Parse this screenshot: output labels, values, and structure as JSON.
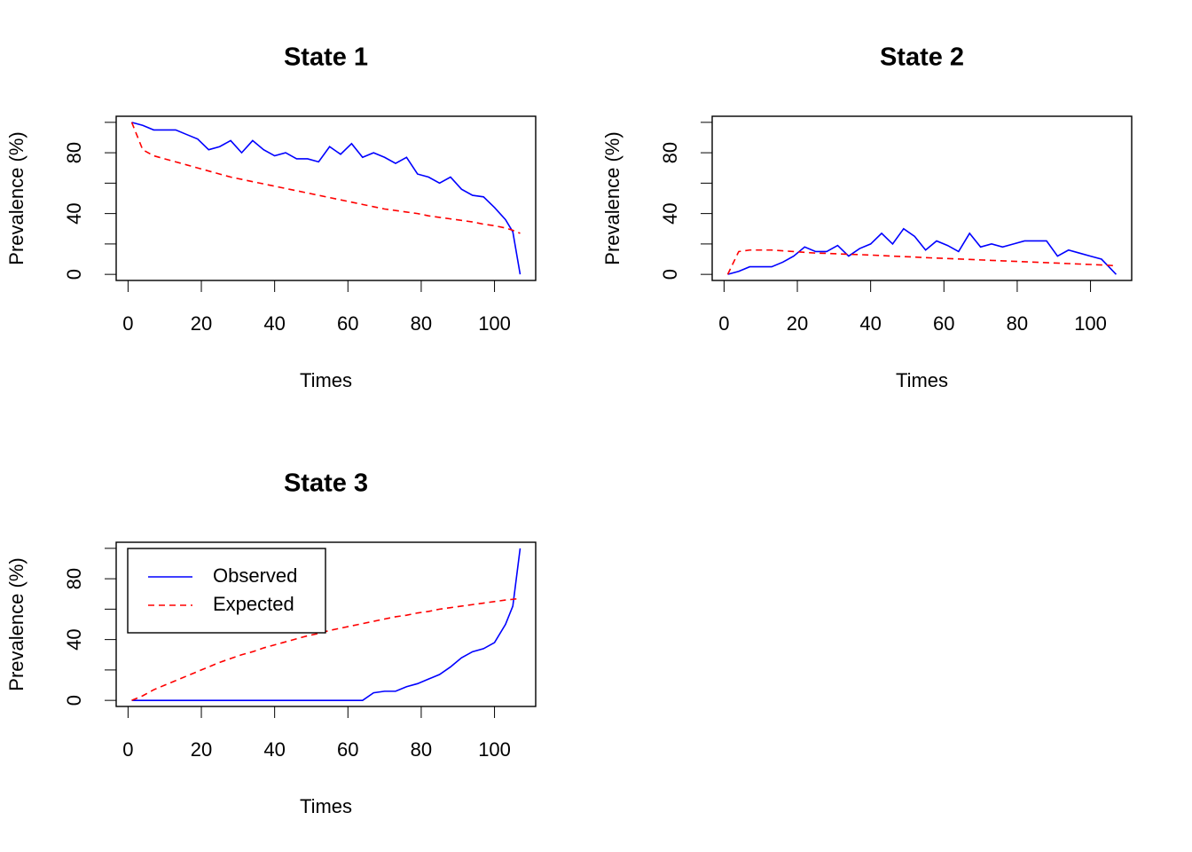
{
  "chart_data": [
    {
      "type": "line",
      "title": "State 1",
      "xlabel": "Times",
      "ylabel": "Prevalence (%)",
      "x": [
        1,
        4,
        7,
        10,
        13,
        16,
        19,
        22,
        25,
        28,
        31,
        34,
        37,
        40,
        43,
        46,
        49,
        52,
        55,
        58,
        61,
        64,
        67,
        70,
        73,
        76,
        79,
        82,
        85,
        88,
        91,
        94,
        97,
        100,
        103,
        105,
        107
      ],
      "series": [
        {
          "name": "Observed",
          "color": "#0000ff",
          "linestyle": "solid",
          "values": [
            100,
            98,
            95,
            95,
            95,
            92,
            89,
            82,
            84,
            88,
            80,
            88,
            82,
            78,
            80,
            76,
            76,
            74,
            84,
            79,
            86,
            77,
            80,
            77,
            73,
            77,
            66,
            64,
            60,
            64,
            56,
            52,
            51,
            44,
            36,
            28,
            0
          ]
        },
        {
          "name": "Expected",
          "color": "#ff0000",
          "linestyle": "dashed",
          "values": [
            100,
            82,
            78,
            76,
            74,
            72,
            70,
            68,
            66,
            64,
            62.5,
            61,
            59.5,
            58,
            56.5,
            55,
            53.5,
            52,
            50.5,
            49,
            47.5,
            46,
            44.5,
            43,
            42,
            41,
            40,
            38.5,
            37.5,
            36.5,
            35.5,
            34.5,
            33,
            32,
            30.5,
            29,
            27
          ]
        }
      ],
      "xlim": [
        -3.24,
        111.24
      ],
      "ylim": [
        -4,
        104
      ],
      "xticks": [
        0,
        20,
        40,
        60,
        80,
        100
      ],
      "yticks": [
        0,
        40,
        80
      ],
      "yminor_ticks": [
        20,
        60,
        100
      ]
    },
    {
      "type": "line",
      "title": "State 2",
      "xlabel": "Times",
      "ylabel": "Prevalence (%)",
      "x": [
        1,
        4,
        7,
        10,
        13,
        16,
        19,
        22,
        25,
        28,
        31,
        34,
        37,
        40,
        43,
        46,
        49,
        52,
        55,
        58,
        61,
        64,
        67,
        70,
        73,
        76,
        79,
        82,
        85,
        88,
        91,
        94,
        97,
        100,
        103,
        105,
        107
      ],
      "series": [
        {
          "name": "Observed",
          "color": "#0000ff",
          "linestyle": "solid",
          "values": [
            0,
            2,
            5,
            5,
            5,
            8,
            12,
            18,
            15,
            15,
            19,
            12,
            17,
            20,
            27,
            20,
            30,
            25,
            16,
            22,
            19,
            15,
            27,
            18,
            20,
            18,
            20,
            22,
            22,
            22,
            12,
            16,
            14,
            12,
            10,
            5,
            0
          ]
        },
        {
          "name": "Expected",
          "color": "#ff0000",
          "linestyle": "dashed",
          "values": [
            0,
            15,
            16,
            16,
            16,
            15.5,
            15,
            14.5,
            14,
            13.8,
            13.5,
            13.2,
            13,
            12.7,
            12.4,
            12,
            11.7,
            11.4,
            11,
            10.7,
            10.4,
            10.1,
            9.8,
            9.5,
            9.2,
            8.9,
            8.6,
            8.3,
            8,
            7.7,
            7.4,
            7.1,
            6.8,
            6.5,
            6.2,
            6,
            5.5
          ]
        }
      ],
      "xlim": [
        -3.24,
        111.24
      ],
      "ylim": [
        -4,
        104
      ],
      "xticks": [
        0,
        20,
        40,
        60,
        80,
        100
      ],
      "yticks": [
        0,
        40,
        80
      ],
      "yminor_ticks": [
        20,
        60,
        100
      ]
    },
    {
      "type": "line",
      "title": "State 3",
      "xlabel": "Times",
      "ylabel": "Prevalence (%)",
      "x": [
        1,
        4,
        7,
        10,
        13,
        16,
        19,
        22,
        25,
        28,
        31,
        34,
        37,
        40,
        43,
        46,
        49,
        52,
        55,
        58,
        61,
        64,
        67,
        70,
        73,
        76,
        79,
        82,
        85,
        88,
        91,
        94,
        97,
        100,
        103,
        105,
        107
      ],
      "series": [
        {
          "name": "Observed",
          "color": "#0000ff",
          "linestyle": "solid",
          "values": [
            0,
            0,
            0,
            0,
            0,
            0,
            0,
            0,
            0,
            0,
            0,
            0,
            0,
            0,
            0,
            0,
            0,
            0,
            0,
            0,
            0,
            0,
            5,
            6,
            6,
            9,
            11,
            14,
            17,
            22,
            28,
            32,
            34,
            38,
            50,
            62,
            100
          ]
        },
        {
          "name": "Expected",
          "color": "#ff0000",
          "linestyle": "dashed",
          "values": [
            0,
            3,
            7,
            10,
            13,
            16,
            19,
            22,
            25,
            27.5,
            30,
            32,
            34.5,
            36.5,
            38.5,
            40.5,
            42.5,
            44,
            46,
            47.5,
            49,
            50.5,
            52,
            53.5,
            55,
            56,
            57.5,
            58.5,
            60,
            61,
            62,
            63,
            64,
            65,
            66,
            66.5,
            67
          ]
        }
      ],
      "xlim": [
        -3.24,
        111.24
      ],
      "ylim": [
        -4,
        104
      ],
      "xticks": [
        0,
        20,
        40,
        60,
        80,
        100
      ],
      "yticks": [
        0,
        40,
        80
      ],
      "yminor_ticks": [
        20,
        60,
        100
      ],
      "legend": "topleft"
    }
  ]
}
